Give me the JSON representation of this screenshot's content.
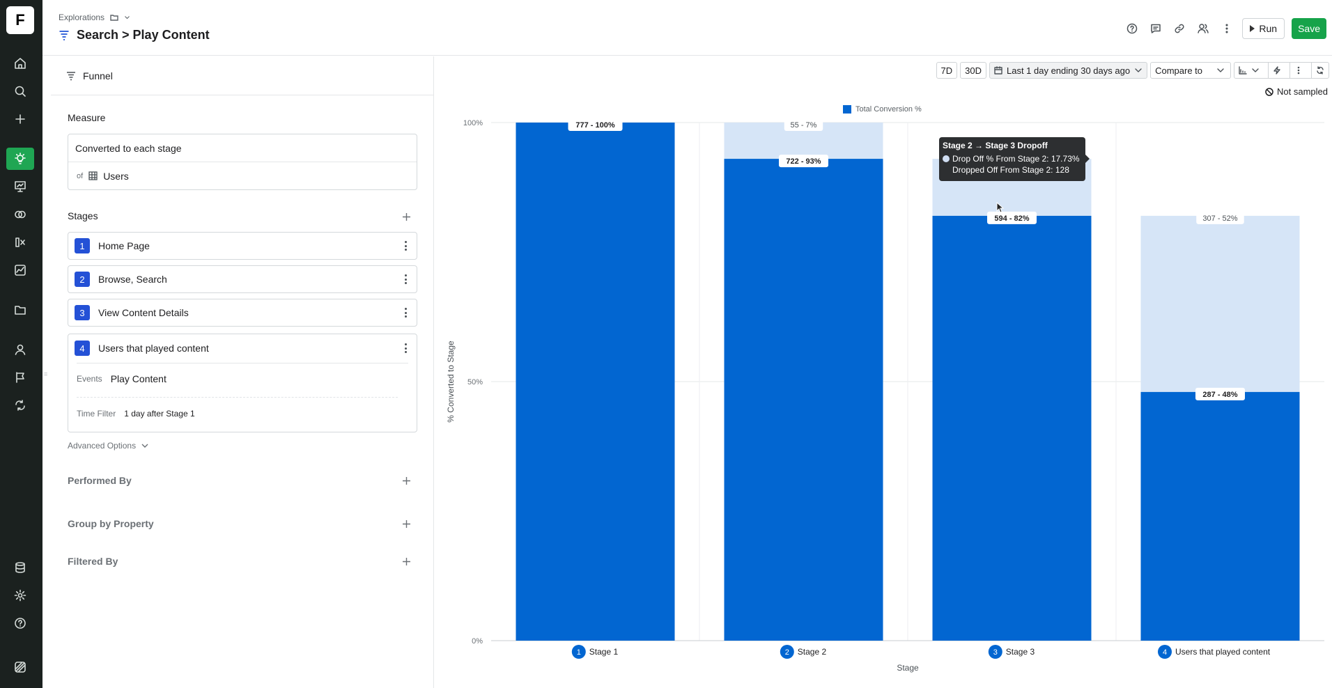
{
  "app": {
    "logo_letter": "F",
    "breadcrumb": "Explorations",
    "title": "Search > Play Content",
    "run_label": "Run",
    "save_label": "Save"
  },
  "rail_icons": [
    "home-icon",
    "search-icon",
    "plus-icon",
    "lightbulb-icon",
    "presentation-icon",
    "overlap-icon",
    "formula-icon",
    "line-chart-icon",
    "folder-icon",
    "user-icon",
    "flag-icon",
    "experiment-icon",
    "database-icon",
    "gear-icon",
    "help-icon",
    "stack-icon"
  ],
  "header_icons": [
    "help-icon",
    "comment-icon",
    "link-icon",
    "people-icon",
    "more-vertical-icon"
  ],
  "panel": {
    "tab_label": "Funnel",
    "measure_label": "Measure",
    "measure_value": "Converted to each stage",
    "of_label": "of",
    "entity": "Users",
    "stages_label": "Stages",
    "stages": [
      {
        "num": "1",
        "name": "Home Page"
      },
      {
        "num": "2",
        "name": "Browse, Search"
      },
      {
        "num": "3",
        "name": "View Content Details"
      },
      {
        "num": "4",
        "name": "Users that played content"
      }
    ],
    "stage4_events_key": "Events",
    "stage4_events_value": "Play Content",
    "stage4_time_key": "Time Filter",
    "stage4_time_value": "1 day after Stage 1",
    "advanced_label": "Advanced Options",
    "performed_by": "Performed By",
    "group_by": "Group by Property",
    "filtered_by": "Filtered By"
  },
  "toolbar": {
    "btn_7d": "7D",
    "btn_30d": "30D",
    "date_range": "Last 1 day ending 30 days ago",
    "compare": "Compare to",
    "not_sampled": "Not sampled"
  },
  "tooltip": {
    "title": "Stage 2 → Stage 3 Dropoff",
    "line1": "Drop Off % From Stage 2: 17.73%",
    "line2": "Dropped Off From Stage 2: 128"
  },
  "colors": {
    "bar": "#0266d1",
    "dropoff": "#d6e5f7",
    "active_rail": "#1fa653",
    "save": "#16a34a",
    "stage_num": "#2451d6"
  },
  "chart_data": {
    "type": "bar",
    "ylabel": "% Converted to Stage",
    "xlabel": "Stage",
    "ylim": [
      0,
      100
    ],
    "yticks": [
      "0%",
      "50%",
      "100%"
    ],
    "legend": [
      "Total Conversion %"
    ],
    "categories": [
      {
        "num": "1",
        "label": "Stage 1"
      },
      {
        "num": "2",
        "label": "Stage 2"
      },
      {
        "num": "3",
        "label": "Stage 3"
      },
      {
        "num": "4",
        "label": "Users that played content"
      }
    ],
    "series": [
      {
        "name": "Total Conversion %",
        "values": [
          100,
          93,
          82,
          48
        ],
        "labels": [
          "777 - 100%",
          "722 - 93%",
          "594 - 82%",
          "287 - 48%"
        ]
      }
    ],
    "dropoff": {
      "values": [
        0,
        7,
        11,
        34
      ],
      "labels": [
        "",
        "55 - 7%",
        "",
        "307 - 52%"
      ]
    }
  }
}
